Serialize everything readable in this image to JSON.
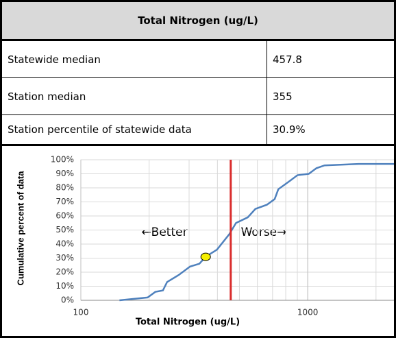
{
  "table": {
    "header": "Total Nitrogen (ug/L)",
    "rows": [
      [
        "Statewide median",
        "457.8"
      ],
      [
        "Station median",
        "355"
      ],
      [
        "Station percentile of statewide data",
        "30.9%"
      ]
    ]
  },
  "chart_data": {
    "type": "line",
    "x_label": "Total Nitrogen (ug/L)",
    "y_label": "Cumulative percent of data",
    "annotations": [
      "←Better",
      "Worse→"
    ],
    "log_x": true,
    "grid": true,
    "xlim": [
      100,
      2450
    ],
    "xticks": [
      100,
      1000
    ],
    "ylim": [
      0,
      100
    ],
    "yticks": [
      {
        "value": 0,
        "label": "0%"
      },
      {
        "value": 10,
        "label": "10%"
      },
      {
        "value": 20,
        "label": "20%"
      },
      {
        "value": 30,
        "label": "30%"
      },
      {
        "value": 40,
        "label": "40%"
      },
      {
        "value": 50,
        "label": "50%"
      },
      {
        "value": 60,
        "label": "60%"
      },
      {
        "value": 70,
        "label": "70%"
      },
      {
        "value": 80,
        "label": "80%"
      },
      {
        "value": 90,
        "label": "90%"
      },
      {
        "value": 100,
        "label": "100%"
      }
    ],
    "series": [
      {
        "color": "#4f81bd",
        "x": [
          148,
          197,
          213,
          230,
          240,
          270,
          303,
          333,
          355,
          398,
          451,
          483,
          544,
          588,
          661,
          715,
          742,
          835,
          901,
          1011,
          1093,
          1187,
          1680,
          2450
        ],
        "values": [
          0,
          2,
          6,
          7,
          13,
          18,
          24,
          26,
          31,
          36,
          47,
          55,
          59,
          65,
          68,
          72,
          79,
          85,
          89,
          90,
          94,
          96,
          97,
          97
        ]
      }
    ],
    "median_line_color": "#d92b2b",
    "station_marker_color": "#f5ef00"
  }
}
